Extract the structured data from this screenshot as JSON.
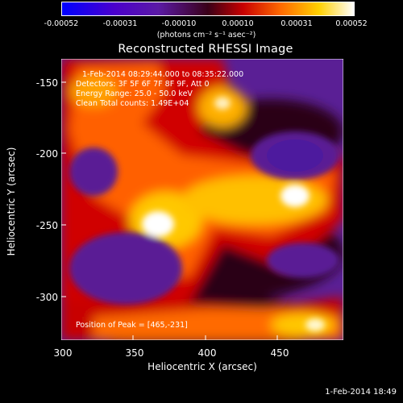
{
  "colorbar": {
    "ticks": [
      "-0.00052",
      "-0.00031",
      "-0.00010",
      "0.00010",
      "0.00031",
      "0.00052"
    ],
    "unit_label": "(photons cm⁻² s⁻¹ asec⁻²)"
  },
  "title": "Reconstructed RHESSI Image",
  "annotations": {
    "time_range": "1-Feb-2014 08:29:44.000 to 08:35:22.000",
    "detectors": "Detectors: 3F 5F 6F 7F 8F 9F, Att 0",
    "energy": "Energy Range: 25.0 - 50.0 keV",
    "clean": "Clean     Total counts: 1.49E+04",
    "peak": "Position of Peak = [465,-231]"
  },
  "axes": {
    "xlabel": "Heliocentric X (arcsec)",
    "ylabel": "Heliocentric Y (arcsec)",
    "xticks": [
      "300",
      "350",
      "400",
      "450"
    ],
    "yticks": [
      "-150",
      "-200",
      "-250",
      "-300"
    ]
  },
  "footer_date": "1-Feb-2014 18:49"
}
